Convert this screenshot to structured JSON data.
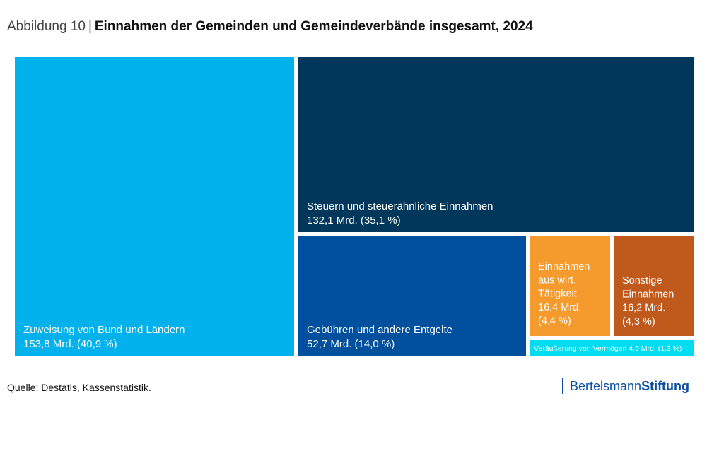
{
  "header": {
    "prefix": "Abbildung 10",
    "separator": "|",
    "title": "Einnahmen der Gemeinden und Gemeindeverbände insgesamt, 2024"
  },
  "chart_data": {
    "type": "treemap",
    "title": "Einnahmen der Gemeinden und Gemeindeverbände insgesamt, 2024",
    "unit": "Mrd.",
    "items": [
      {
        "id": "zuweisung",
        "name": "Zuweisung von Bund und Ländern",
        "value": 153.8,
        "share": 40.9,
        "value_label": "153,8 Mrd. (40,9 %)",
        "color": "#00b1eb"
      },
      {
        "id": "steuern",
        "name": "Steuern und steuerähnliche Einnahmen",
        "value": 132.1,
        "share": 35.1,
        "value_label": "132,1 Mrd. (35,1 %)",
        "color": "#00375a"
      },
      {
        "id": "gebuehren",
        "name": "Gebühren und andere Entgelte",
        "value": 52.7,
        "share": 14.0,
        "value_label": "52,7 Mrd. (14,0 %)",
        "color": "#00509d"
      },
      {
        "id": "wirt",
        "name": "Einnahmen aus wirt. Tätigkeit",
        "name_lines": [
          "Einnahmen",
          "aus wirt.",
          "Tätigkeit"
        ],
        "value": 16.4,
        "share": 4.4,
        "value_label_lines": [
          "16,4 Mrd.",
          "(4,4 %)"
        ],
        "color": "#f59a2c"
      },
      {
        "id": "sonstige",
        "name": "Sonstige Einnahmen",
        "name_lines": [
          "Sonstige",
          "Einnahmen"
        ],
        "value": 16.2,
        "share": 4.3,
        "value_label_lines": [
          "16,2 Mrd.",
          "(4,3 %)"
        ],
        "color": "#c05a1c"
      },
      {
        "id": "veraeusserung",
        "name": "Veräußerung von Vermögen",
        "value": 4.9,
        "share": 1.3,
        "label": "Veräußerung von Vermögen 4,9 Mrd. (1,3 %)",
        "color": "#00dcf0"
      }
    ]
  },
  "footer": {
    "source": "Quelle: Destatis, Kassenstatistik.",
    "logo_part1": "Bertelsmann",
    "logo_part2": "Stiftung"
  }
}
